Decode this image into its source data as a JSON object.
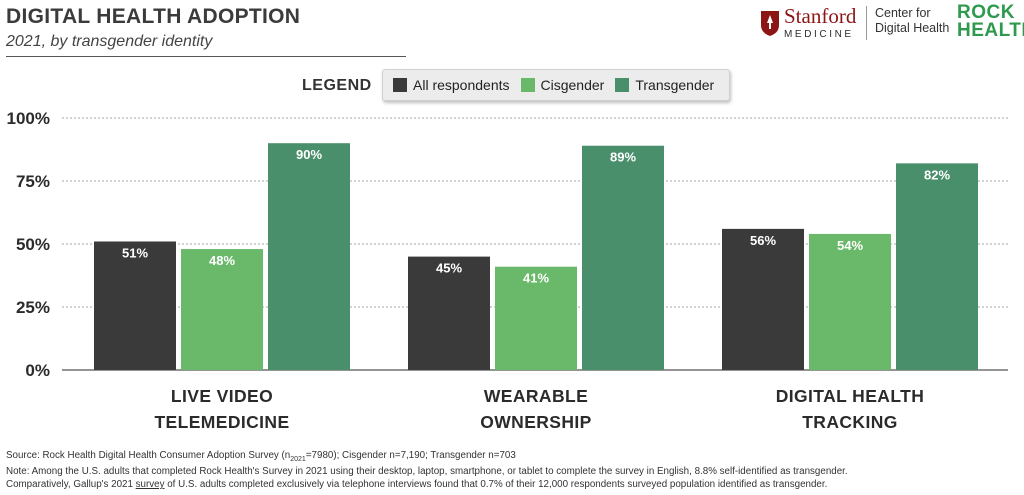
{
  "header": {
    "title": "DIGITAL HEALTH ADOPTION",
    "subtitle": "2021, by transgender identity"
  },
  "logos": {
    "stanford_word": "Stanford",
    "stanford_sub": "MEDICINE",
    "cdh_line1": "Center for",
    "cdh_line2": "Digital Health",
    "rock_line1": "ROCK",
    "rock_line2": "HEALTH"
  },
  "legend": {
    "label": "LEGEND",
    "items": [
      {
        "name": "All respondents",
        "color": "#3a3a3a"
      },
      {
        "name": "Cisgender",
        "color": "#6ab96a"
      },
      {
        "name": "Transgender",
        "color": "#4a8f6c"
      }
    ]
  },
  "chart_data": {
    "type": "bar",
    "title": "DIGITAL HEALTH ADOPTION",
    "subtitle": "2021, by transgender identity",
    "categories": [
      [
        "LIVE VIDEO",
        "TELEMEDICINE"
      ],
      [
        "WEARABLE",
        "OWNERSHIP"
      ],
      [
        "DIGITAL HEALTH",
        "TRACKING"
      ]
    ],
    "series": [
      {
        "name": "All respondents",
        "color": "#3a3a3a",
        "values": [
          51,
          45,
          56
        ]
      },
      {
        "name": "Cisgender",
        "color": "#6ab96a",
        "values": [
          48,
          41,
          54
        ]
      },
      {
        "name": "Transgender",
        "color": "#4a8f6c",
        "values": [
          90,
          89,
          82
        ]
      }
    ],
    "value_suffix": "%",
    "ylim": [
      0,
      100
    ],
    "yticks": [
      0,
      25,
      50,
      75,
      100
    ],
    "ytick_labels": [
      "0%",
      "25%",
      "50%",
      "75%",
      "100%"
    ],
    "grid": true,
    "legend_position": "top-center"
  },
  "footer": {
    "source_pre": "Source: Rock Health Digital Health Consumer Adoption Survey (n",
    "source_sub": "2021",
    "source_post": "=7980); Cisgender n=7,190; Transgender n=703",
    "note": "Note: Among the U.S. adults that completed Rock Health's Survey in 2021 using their desktop, laptop, smartphone, or tablet to complete the survey in English, 8.8% self-identified as transgender.",
    "comp_pre": "Comparatively, Gallup's 2021 ",
    "comp_link": "survey",
    "comp_post": " of U.S. adults completed exclusively via telephone interviews found that 0.7% of their 12,000 respondents surveyed population identified as transgender."
  }
}
